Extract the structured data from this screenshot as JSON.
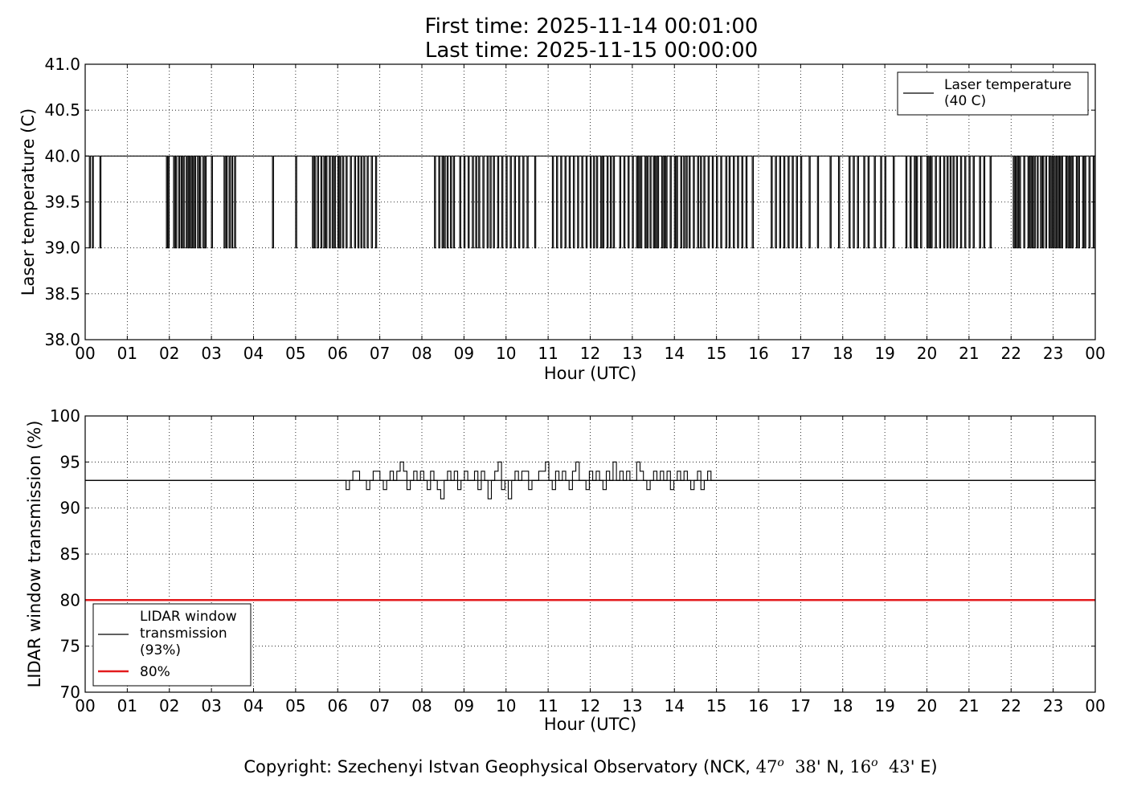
{
  "title": {
    "line1": "First time: 2025-11-14 00:01:00",
    "line2": "Last time: 2025-11-15 00:00:00"
  },
  "copyright": {
    "prefix": "Copyright: Szechenyi Istvan Geophysical Observatory (NCK, ",
    "lat_deg": "47",
    "lat_deg_sym": "o",
    "lat_min": "38",
    "lat_suffix": "' N, ",
    "lon_deg": "16",
    "lon_deg_sym": "o",
    "lon_min": "43",
    "lon_suffix": "' E)"
  },
  "chart_data": [
    {
      "type": "line",
      "title": "",
      "xlabel": "Hour (UTC)",
      "ylabel": "Laser temperature (C)",
      "xlim": [
        0,
        24
      ],
      "ylim": [
        38.0,
        41.0
      ],
      "xticks": [
        "00",
        "01",
        "02",
        "03",
        "04",
        "05",
        "06",
        "07",
        "08",
        "09",
        "10",
        "11",
        "12",
        "13",
        "14",
        "15",
        "16",
        "17",
        "18",
        "19",
        "20",
        "21",
        "22",
        "23",
        "00"
      ],
      "yticks": [
        "38.0",
        "38.5",
        "39.0",
        "39.5",
        "40.0",
        "40.5",
        "41.0"
      ],
      "grid": true,
      "legend_position": "top-right",
      "series": [
        {
          "name": "Laser temperature\n(40 C)",
          "color": "#000000",
          "baseline": 40.0,
          "low_value": 39.0,
          "dip_to_39_hours": [
            0.1,
            0.17,
            0.35,
            1.93,
            1.97,
            2.1,
            2.15,
            2.22,
            2.28,
            2.33,
            2.4,
            2.45,
            2.5,
            2.55,
            2.6,
            2.67,
            2.72,
            2.8,
            2.85,
            3.0,
            3.3,
            3.35,
            3.42,
            3.48,
            3.55,
            4.45,
            5.0,
            5.4,
            5.45,
            5.52,
            5.6,
            5.67,
            5.72,
            5.8,
            5.87,
            5.92,
            6.0,
            6.05,
            6.12,
            6.2,
            6.3,
            6.4,
            6.48,
            6.55,
            6.62,
            6.7,
            6.8,
            6.9,
            8.3,
            8.4,
            8.48,
            8.53,
            8.6,
            8.68,
            8.75,
            8.9,
            9.0,
            9.1,
            9.2,
            9.28,
            9.35,
            9.45,
            9.55,
            9.62,
            9.7,
            9.8,
            9.9,
            10.0,
            10.1,
            10.2,
            10.3,
            10.4,
            10.5,
            10.68,
            11.1,
            11.2,
            11.3,
            11.4,
            11.5,
            11.6,
            11.7,
            11.8,
            11.9,
            12.0,
            12.08,
            12.15,
            12.25,
            12.3,
            12.4,
            12.48,
            12.55,
            12.7,
            12.8,
            12.9,
            13.0,
            13.1,
            13.15,
            13.2,
            13.3,
            13.35,
            13.42,
            13.5,
            13.55,
            13.6,
            13.7,
            13.75,
            13.8,
            13.9,
            14.0,
            14.05,
            14.15,
            14.22,
            14.28,
            14.35,
            14.45,
            14.55,
            14.62,
            14.7,
            14.8,
            14.9,
            15.0,
            15.1,
            15.22,
            15.3,
            15.4,
            15.5,
            15.6,
            15.7,
            15.85,
            16.3,
            16.4,
            16.5,
            16.6,
            16.7,
            16.8,
            16.9,
            17.0,
            17.2,
            17.4,
            17.7,
            17.9,
            18.15,
            18.25,
            18.35,
            18.5,
            18.6,
            18.75,
            18.9,
            19.0,
            19.2,
            19.5,
            19.6,
            19.7,
            19.75,
            19.85,
            20.0,
            20.05,
            20.1,
            20.2,
            20.3,
            20.4,
            20.48,
            20.55,
            20.62,
            20.7,
            20.8,
            20.9,
            21.0,
            21.1,
            21.25,
            21.35,
            21.5,
            22.05,
            22.1,
            22.15,
            22.2,
            22.3,
            22.4,
            22.45,
            22.5,
            22.55,
            22.62,
            22.7,
            22.75,
            22.82,
            22.9,
            22.95,
            23.0,
            23.05,
            23.1,
            23.15,
            23.2,
            23.3,
            23.35,
            23.4,
            23.45,
            23.55,
            23.6,
            23.7,
            23.75,
            23.85,
            23.95
          ]
        }
      ]
    },
    {
      "type": "line",
      "title": "",
      "xlabel": "Hour (UTC)",
      "ylabel": "LIDAR window transmission (%)",
      "xlim": [
        0,
        24
      ],
      "ylim": [
        70,
        100
      ],
      "xticks": [
        "00",
        "01",
        "02",
        "03",
        "04",
        "05",
        "06",
        "07",
        "08",
        "09",
        "10",
        "11",
        "12",
        "13",
        "14",
        "15",
        "16",
        "17",
        "18",
        "19",
        "20",
        "21",
        "22",
        "23",
        "00"
      ],
      "yticks": [
        "70",
        "75",
        "80",
        "85",
        "90",
        "95",
        "100"
      ],
      "grid": true,
      "legend_position": "bottom-left",
      "series": [
        {
          "name": "LIDAR window\ntransmission\n(93%)",
          "color": "#000000",
          "baseline": 93,
          "noisy_start_hour": 6.2,
          "noisy_end_hour": 14.95,
          "noise_values": [
            92,
            93,
            94,
            94,
            93,
            93,
            92,
            93,
            94,
            94,
            93,
            92,
            93,
            94,
            93,
            94,
            95,
            94,
            92,
            93,
            94,
            93,
            94,
            93,
            92,
            94,
            93,
            92,
            91,
            93,
            94,
            93,
            94,
            92,
            93,
            94,
            93,
            93,
            94,
            92,
            94,
            93,
            91,
            93,
            94,
            95,
            92,
            93,
            91,
            93,
            94,
            93,
            94,
            94,
            92,
            93,
            93,
            94,
            94,
            95,
            93,
            92,
            94,
            93,
            94,
            93,
            92,
            94,
            95,
            93,
            93,
            92,
            94,
            93,
            94,
            93,
            92,
            94,
            93,
            95,
            93,
            94,
            93,
            94,
            93,
            93,
            95,
            94,
            93,
            92,
            93,
            94,
            93,
            94,
            93,
            94,
            92,
            93,
            94,
            93,
            94,
            93,
            92,
            93,
            94,
            92,
            93,
            94,
            93
          ]
        },
        {
          "name": "80%",
          "color": "#e31a1c",
          "values": [
            80,
            80
          ]
        }
      ]
    }
  ]
}
